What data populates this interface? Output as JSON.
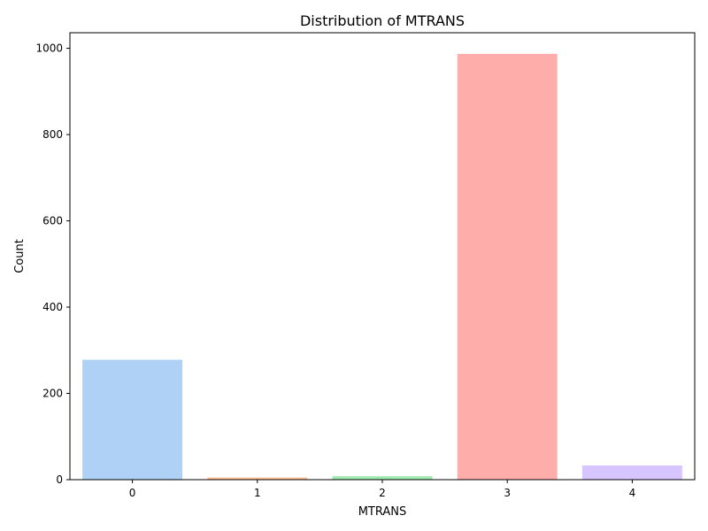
{
  "chart_data": {
    "type": "bar",
    "title": "Distribution of MTRANS",
    "xlabel": "MTRANS",
    "ylabel": "Count",
    "categories": [
      "0",
      "1",
      "2",
      "3",
      "4"
    ],
    "values": [
      278,
      5,
      8,
      987,
      33
    ],
    "colors": [
      "#a1c9f4",
      "#ffb482",
      "#8de5a1",
      "#ff9f9b",
      "#d0bbff"
    ],
    "bar_opacity": 0.85,
    "ylim": [
      0,
      1036
    ],
    "yticks": [
      0,
      200,
      400,
      600,
      800,
      1000
    ],
    "grid": false,
    "legend": false
  }
}
